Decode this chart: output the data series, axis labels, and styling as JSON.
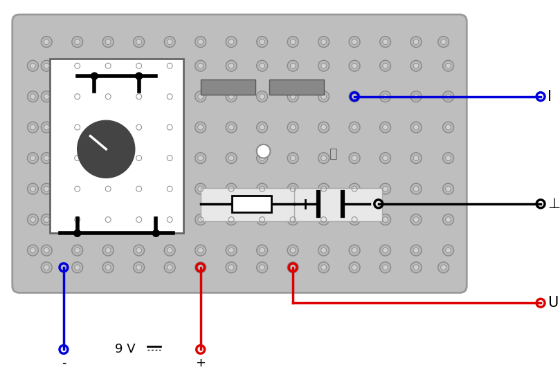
{
  "bg_color": "#ffffff",
  "wire_blue_color": "#0000dd",
  "wire_red_color": "#dd0000",
  "wire_black_color": "#000000",
  "board_facecolor": "#bebebe",
  "board_edge_color": "#999999",
  "panel_facecolor": "#ffffff",
  "connector_outer_color": "#aaaaaa",
  "connector_inner_color": "#cccccc",
  "connector_ring_color": "#888888",
  "slot_color": "#888888",
  "dial_color": "#444444",
  "label_I": "I",
  "label_U": "U",
  "label_ground": "⊥",
  "label_minus": "-",
  "label_plus": "+",
  "label_9V": "9 V"
}
